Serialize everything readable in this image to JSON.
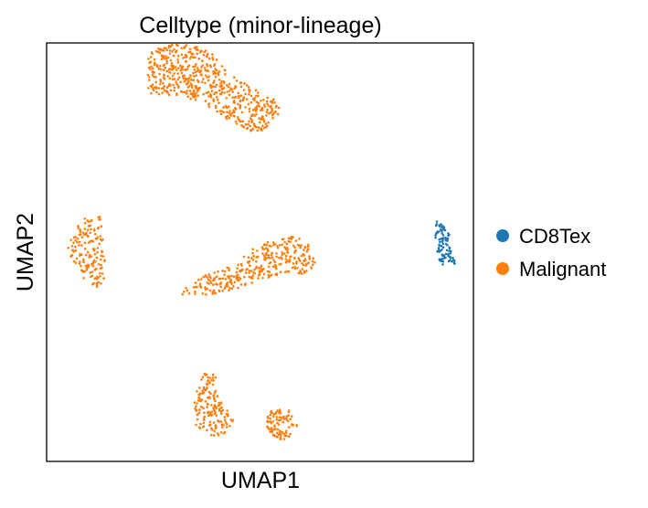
{
  "chart_data": {
    "type": "scatter",
    "title": "Celltype (minor-lineage)",
    "xlabel": "UMAP1",
    "ylabel": "UMAP2",
    "xlim": [
      0,
      100
    ],
    "ylim": [
      0,
      100
    ],
    "grid": false,
    "legend_position": "right",
    "series": [
      {
        "name": "CD8Tex",
        "color": "#1f77b4",
        "clusters": [
          {
            "shape": "polygon",
            "n": 90,
            "points": [
              [
                91.3,
                57.5
              ],
              [
                93.4,
                56.0
              ],
              [
                95.0,
                52.8
              ],
              [
                96.0,
                49.5
              ],
              [
                95.8,
                46.6
              ],
              [
                93.8,
                46.2
              ],
              [
                92.1,
                47.3
              ],
              [
                91.3,
                51.0
              ],
              [
                91.0,
                55.0
              ]
            ]
          }
        ]
      },
      {
        "name": "Malignant",
        "color": "#ff7f0e",
        "clusters": [
          {
            "shape": "polygon",
            "n": 560,
            "points": [
              [
                24.0,
                98.3
              ],
              [
                30.5,
                99.8
              ],
              [
                35.3,
                99.2
              ],
              [
                40.0,
                96.8
              ],
              [
                42.8,
                92.5
              ],
              [
                55.0,
                85.5
              ],
              [
                53.8,
                81.5
              ],
              [
                50.7,
                78.5
              ],
              [
                48.0,
                78.9
              ],
              [
                42.0,
                81.8
              ],
              [
                36.5,
                85.8
              ],
              [
                30.0,
                87.7
              ],
              [
                25.0,
                86.6
              ],
              [
                23.7,
                89.0
              ],
              [
                23.7,
                94.0
              ]
            ]
          },
          {
            "shape": "polygon",
            "n": 150,
            "points": [
              [
                9.0,
                58.5
              ],
              [
                12.8,
                58.5
              ],
              [
                13.8,
                50.5
              ],
              [
                13.5,
                42.5
              ],
              [
                11.0,
                41.3
              ],
              [
                9.0,
                43.0
              ],
              [
                7.0,
                46.5
              ],
              [
                4.5,
                50.0
              ],
              [
                6.5,
                55.0
              ]
            ]
          },
          {
            "shape": "polygon",
            "n": 330,
            "points": [
              [
                30.5,
                40.5
              ],
              [
                37.0,
                44.5
              ],
              [
                45.0,
                47.3
              ],
              [
                47.5,
                50.8
              ],
              [
                52.0,
                52.8
              ],
              [
                57.0,
                53.8
              ],
              [
                61.5,
                53.1
              ],
              [
                62.5,
                50.5
              ],
              [
                63.0,
                47.0
              ],
              [
                60.5,
                44.5
              ],
              [
                57.0,
                45.0
              ],
              [
                52.5,
                44.0
              ],
              [
                45.0,
                41.5
              ],
              [
                38.0,
                39.5
              ],
              [
                31.0,
                39.8
              ]
            ]
          },
          {
            "shape": "polygon",
            "n": 160,
            "points": [
              [
                37.0,
                21.0
              ],
              [
                39.5,
                20.8
              ],
              [
                40.5,
                15.5
              ],
              [
                44.5,
                8.5
              ],
              [
                43.0,
                6.5
              ],
              [
                39.0,
                6.0
              ],
              [
                35.0,
                8.5
              ],
              [
                34.5,
                14.0
              ],
              [
                35.5,
                18.0
              ]
            ]
          },
          {
            "shape": "polygon",
            "n": 90,
            "points": [
              [
                53.0,
                12.5
              ],
              [
                57.0,
                12.2
              ],
              [
                59.0,
                8.0
              ],
              [
                57.5,
                5.0
              ],
              [
                54.0,
                5.3
              ],
              [
                51.5,
                7.5
              ],
              [
                51.7,
                10.5
              ]
            ]
          }
        ]
      }
    ]
  }
}
